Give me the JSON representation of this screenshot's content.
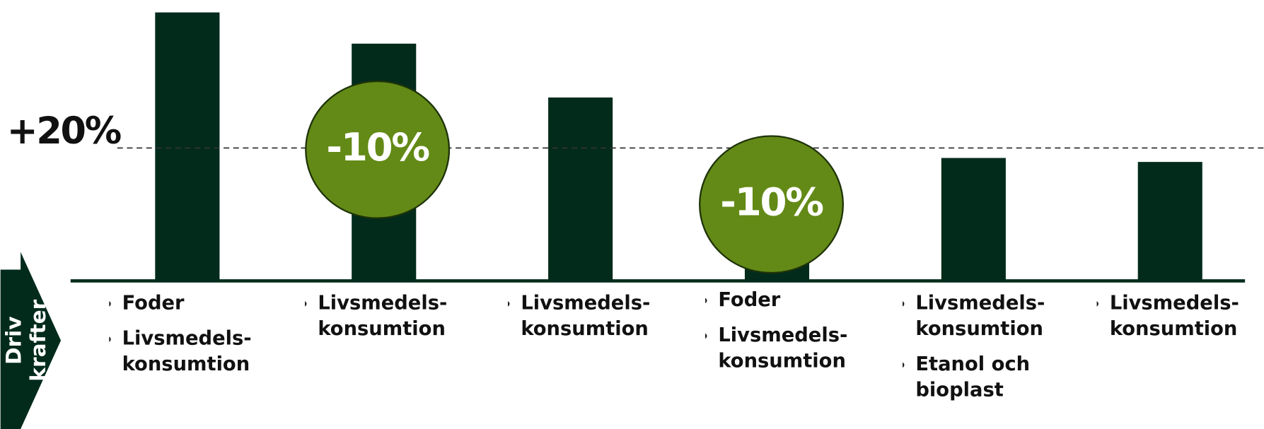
{
  "chart_data": {
    "type": "bar",
    "categories": [
      [
        "Foder",
        "Livsmedels-konsumtion"
      ],
      [
        "Livsmedels-konsumtion"
      ],
      [
        "Livsmedels-konsumtion"
      ],
      [
        "Foder",
        "Livsmedels-konsumtion"
      ],
      [
        "Livsmedels-konsumtion",
        "Etanol och bioplast"
      ],
      [
        "Livsmedels-konsumtion"
      ]
    ],
    "values": [
      40.4,
      35.7,
      27.6,
      7,
      18.5,
      17.9
    ],
    "color": "#022b1c",
    "ylim": [
      0,
      41.3
    ],
    "reference": {
      "value": 20,
      "label": "+20%"
    },
    "annotations": [
      {
        "text": "-10%",
        "color": "#638a16"
      },
      {
        "text": "-10%",
        "color": "#638a16"
      }
    ],
    "side_label": [
      "Driv",
      "krafter"
    ]
  }
}
